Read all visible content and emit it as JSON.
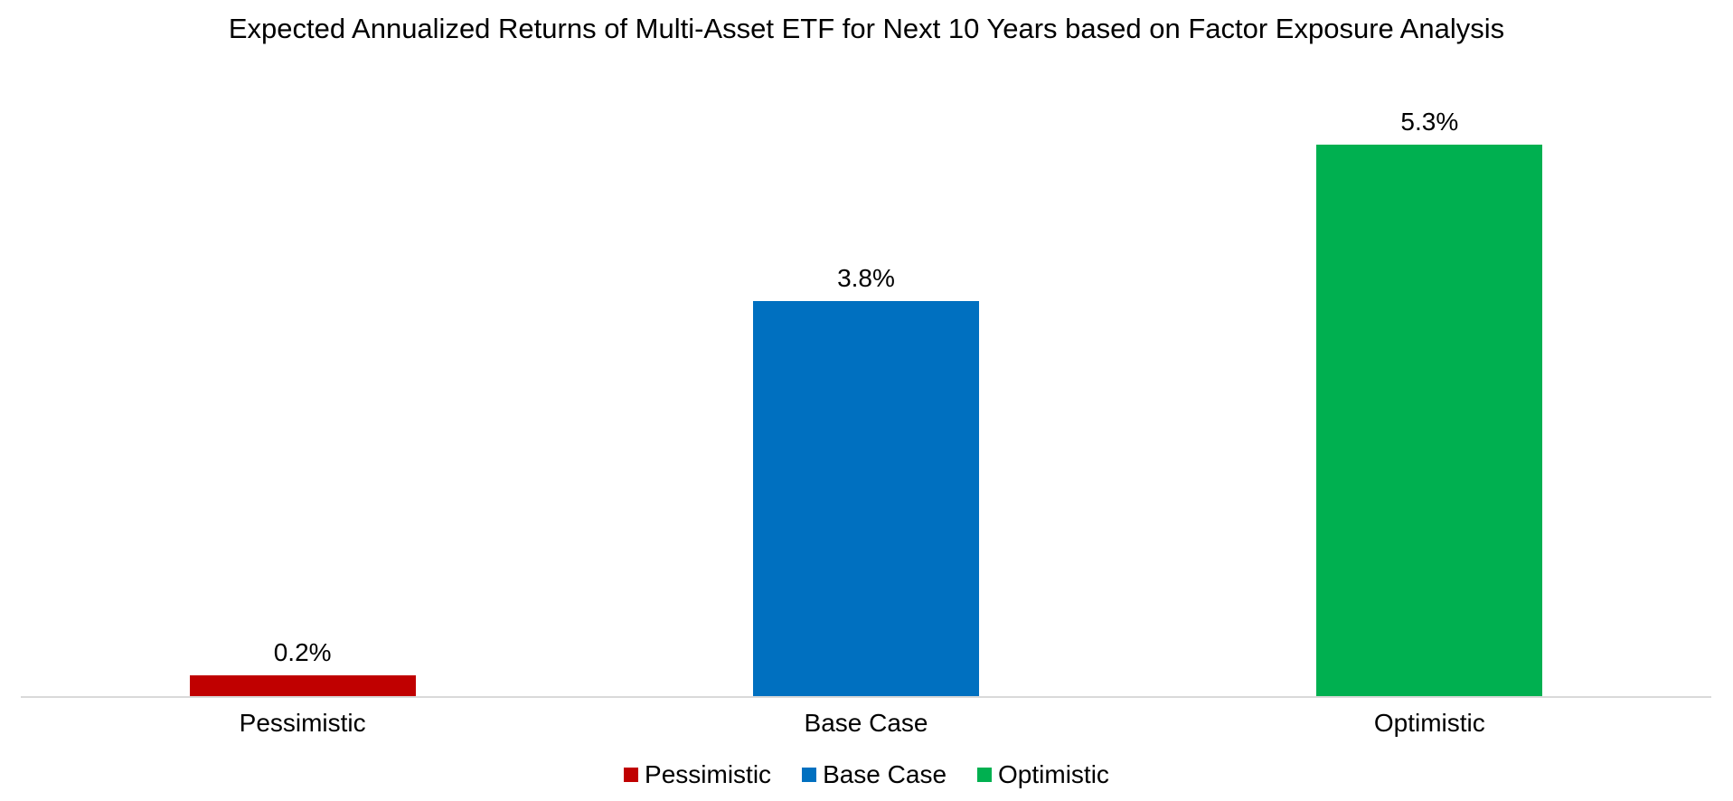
{
  "chart_data": {
    "type": "bar",
    "title": "Expected Annualized Returns of Multi-Asset ETF for Next 10 Years based on Factor Exposure Analysis",
    "categories": [
      "Pessimistic",
      "Base Case",
      "Optimistic"
    ],
    "values": [
      0.2,
      3.8,
      5.3
    ],
    "value_labels": [
      "0.2%",
      "3.8%",
      "5.3%"
    ],
    "bar_colors": [
      "#C00000",
      "#0070C0",
      "#00B050"
    ],
    "xlabel": "",
    "ylabel": "",
    "ylim": [
      0,
      6
    ],
    "y_axis_visible": false,
    "grid": false,
    "axis_line_color": "#D9D9D9",
    "text_color": "#000000",
    "background_color": "#FFFFFF",
    "legend_position": "bottom",
    "legend": [
      {
        "label": "Pessimistic",
        "color": "#C00000"
      },
      {
        "label": "Base Case",
        "color": "#0070C0"
      },
      {
        "label": "Optimistic",
        "color": "#00B050"
      }
    ]
  }
}
